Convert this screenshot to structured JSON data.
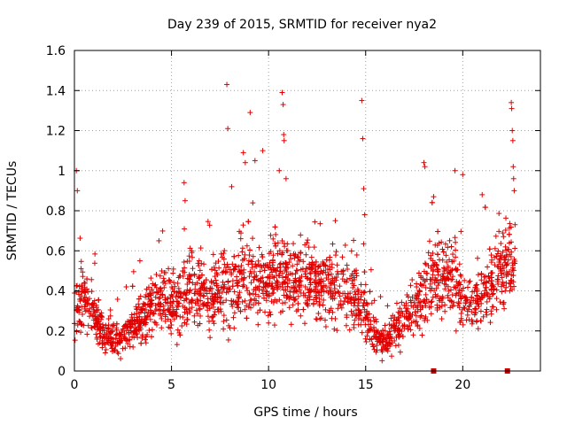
{
  "chart_data": {
    "type": "scatter",
    "title": "Day 239 of 2015, SRMTID for receiver nya2",
    "xlabel": "GPS time / hours",
    "ylabel": "SRMTID / TECUs",
    "xlim": [
      0,
      24
    ],
    "ylim": [
      0,
      1.6
    ],
    "xticks": [
      0,
      5,
      10,
      15,
      20
    ],
    "xtick_labels": [
      "0",
      "5",
      "10",
      "15",
      "20"
    ],
    "yticks": [
      0,
      0.2,
      0.4,
      0.6,
      0.8,
      1.0,
      1.2,
      1.4,
      1.6
    ],
    "ytick_labels": [
      "0",
      "0.2",
      "0.4",
      "0.6",
      "0.8",
      "1",
      "1.2",
      "1.4",
      "1.6"
    ],
    "grid": true,
    "marker": "plus",
    "color": "#e00000",
    "envelope": {
      "hours": [
        0,
        0.5,
        1,
        1.5,
        2,
        2.5,
        3,
        3.5,
        4,
        4.5,
        5,
        5.5,
        6,
        6.5,
        7,
        7.5,
        8,
        8.5,
        9,
        9.5,
        10,
        10.5,
        11,
        11.5,
        12,
        12.5,
        13,
        13.5,
        14,
        14.5,
        15,
        15.5,
        16,
        16.5,
        17,
        17.5,
        18,
        18.5,
        19,
        19.5,
        20,
        20.5,
        21,
        21.5,
        22,
        22.5
      ],
      "mean": [
        0.32,
        0.36,
        0.3,
        0.18,
        0.16,
        0.17,
        0.22,
        0.27,
        0.33,
        0.38,
        0.34,
        0.36,
        0.42,
        0.4,
        0.37,
        0.38,
        0.42,
        0.44,
        0.47,
        0.46,
        0.44,
        0.5,
        0.46,
        0.42,
        0.43,
        0.44,
        0.42,
        0.44,
        0.4,
        0.36,
        0.3,
        0.16,
        0.14,
        0.2,
        0.24,
        0.34,
        0.4,
        0.46,
        0.47,
        0.46,
        0.36,
        0.32,
        0.38,
        0.44,
        0.5,
        0.56
      ],
      "spread": [
        0.14,
        0.13,
        0.12,
        0.08,
        0.07,
        0.07,
        0.09,
        0.11,
        0.12,
        0.13,
        0.13,
        0.14,
        0.15,
        0.14,
        0.14,
        0.15,
        0.17,
        0.17,
        0.17,
        0.16,
        0.16,
        0.17,
        0.16,
        0.14,
        0.14,
        0.15,
        0.14,
        0.15,
        0.14,
        0.14,
        0.13,
        0.08,
        0.07,
        0.09,
        0.11,
        0.13,
        0.14,
        0.16,
        0.16,
        0.16,
        0.12,
        0.11,
        0.13,
        0.15,
        0.17,
        0.18
      ]
    },
    "spikes": [
      {
        "x": 0.1,
        "y": 1.0
      },
      {
        "x": 0.15,
        "y": 0.9
      },
      {
        "x": 5.65,
        "y": 0.94
      },
      {
        "x": 5.7,
        "y": 0.85
      },
      {
        "x": 7.85,
        "y": 1.43
      },
      {
        "x": 7.9,
        "y": 1.21
      },
      {
        "x": 8.1,
        "y": 0.92
      },
      {
        "x": 8.7,
        "y": 1.09
      },
      {
        "x": 8.8,
        "y": 1.04
      },
      {
        "x": 9.05,
        "y": 1.29
      },
      {
        "x": 9.3,
        "y": 1.05
      },
      {
        "x": 9.7,
        "y": 1.1
      },
      {
        "x": 10.55,
        "y": 1.0
      },
      {
        "x": 10.7,
        "y": 1.39
      },
      {
        "x": 10.75,
        "y": 1.33
      },
      {
        "x": 10.78,
        "y": 1.18
      },
      {
        "x": 10.8,
        "y": 1.15
      },
      {
        "x": 10.9,
        "y": 0.96
      },
      {
        "x": 14.8,
        "y": 1.35
      },
      {
        "x": 14.85,
        "y": 1.16
      },
      {
        "x": 14.9,
        "y": 0.91
      },
      {
        "x": 14.95,
        "y": 0.78
      },
      {
        "x": 18.0,
        "y": 1.04
      },
      {
        "x": 18.05,
        "y": 1.02
      },
      {
        "x": 18.5,
        "y": 0.87
      },
      {
        "x": 19.6,
        "y": 1.0
      },
      {
        "x": 20.0,
        "y": 0.98
      },
      {
        "x": 21.0,
        "y": 0.88
      },
      {
        "x": 22.5,
        "y": 1.34
      },
      {
        "x": 22.52,
        "y": 1.31
      },
      {
        "x": 22.55,
        "y": 1.2
      },
      {
        "x": 22.58,
        "y": 1.15
      },
      {
        "x": 22.6,
        "y": 1.02
      },
      {
        "x": 22.62,
        "y": 0.96
      },
      {
        "x": 22.65,
        "y": 0.9
      }
    ],
    "gap_markers": [
      {
        "x": 18.5,
        "y": 0.0
      },
      {
        "x": 22.3,
        "y": 0.0
      }
    ]
  }
}
